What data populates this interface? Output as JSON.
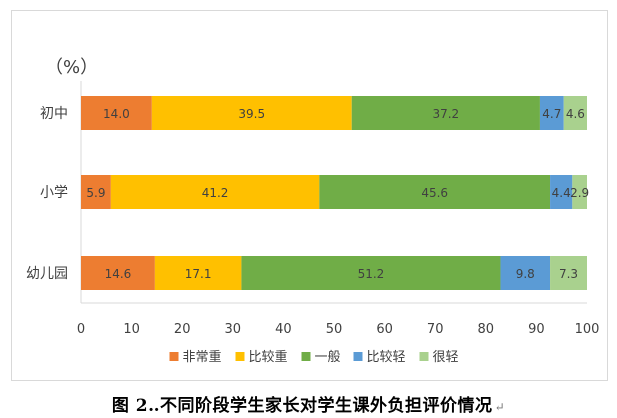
{
  "chart_data": {
    "type": "bar",
    "orientation": "horizontal",
    "stacked": true,
    "unit_label": "（%）",
    "categories": [
      "初中",
      "小学",
      "幼儿园"
    ],
    "series": [
      {
        "name": "非常重",
        "color": "#ED7D31",
        "values": [
          14.0,
          5.9,
          14.6
        ],
        "labels": [
          "14.0",
          "5.9",
          "14.6"
        ]
      },
      {
        "name": "比较重",
        "color": "#FFC000",
        "values": [
          39.5,
          41.2,
          17.1
        ],
        "labels": [
          "39.5",
          "41.2",
          "17.1"
        ]
      },
      {
        "name": "一般",
        "color": "#70AD47",
        "values": [
          37.2,
          45.6,
          51.2
        ],
        "labels": [
          "37.2",
          "45.6",
          "51.2"
        ]
      },
      {
        "name": "比较轻",
        "color": "#5B9BD5",
        "values": [
          4.7,
          4.4,
          9.8
        ],
        "labels": [
          "4.7",
          "4.4",
          "9.8"
        ]
      },
      {
        "name": "很轻",
        "color": "#A9D18E",
        "values": [
          4.6,
          2.9,
          7.3
        ],
        "labels": [
          "4.6",
          "2.9",
          "7.3"
        ]
      }
    ],
    "xlim": [
      0,
      100
    ],
    "xticks": [
      "0",
      "10",
      "20",
      "30",
      "40",
      "50",
      "60",
      "70",
      "80",
      "90",
      "100"
    ],
    "grid": false,
    "legend_position": "bottom"
  },
  "caption": {
    "text": "图 2‥不同阶段学生家长对学生课外负担评价情况",
    "mark": "↵"
  }
}
